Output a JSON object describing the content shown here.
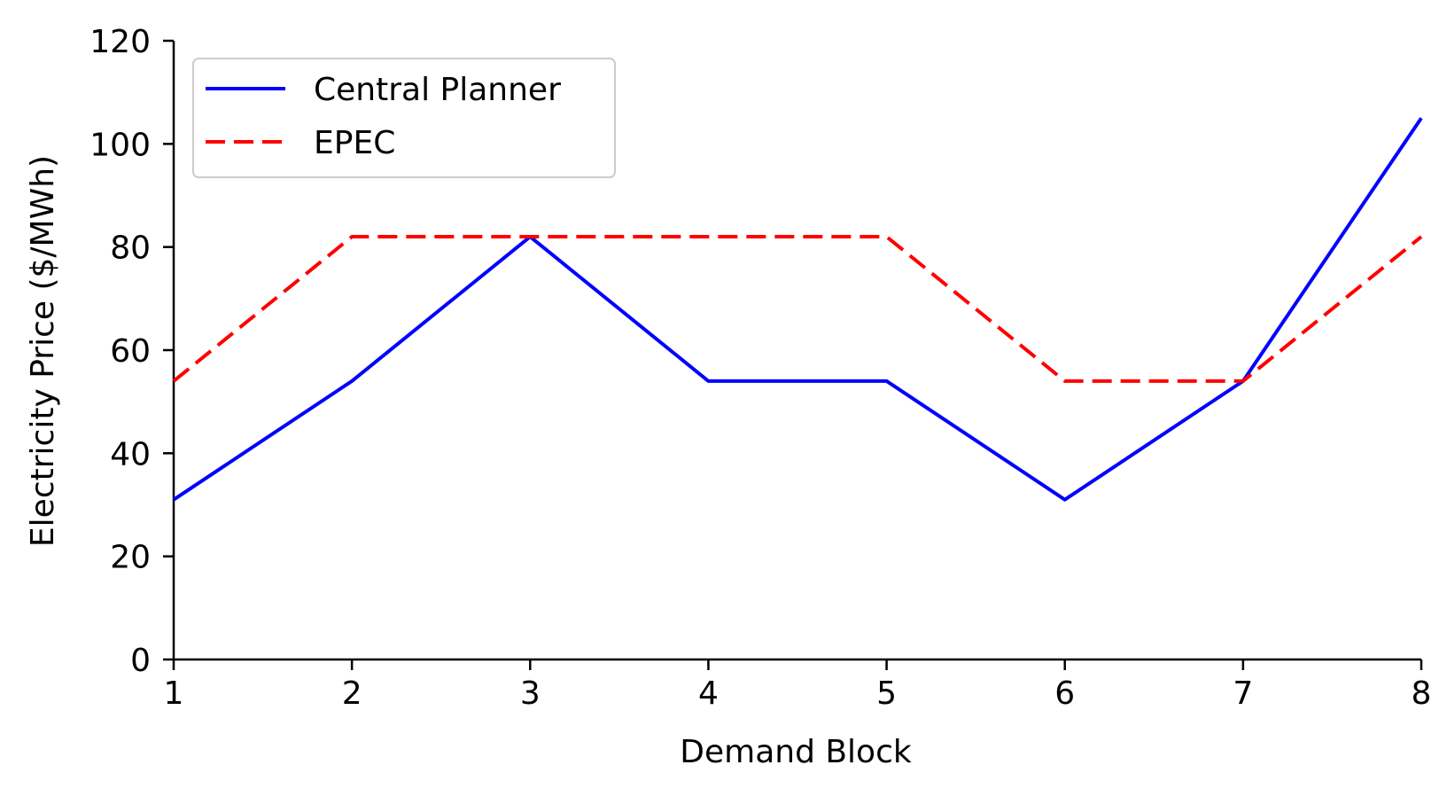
{
  "chart_data": {
    "type": "line",
    "title": "",
    "xlabel": "Demand Block",
    "ylabel": "Electricity Price ($/MWh)",
    "x": [
      1,
      2,
      3,
      4,
      5,
      6,
      7,
      8
    ],
    "xlim": [
      1,
      8
    ],
    "ylim": [
      0,
      120
    ],
    "xticks": [
      "1",
      "2",
      "3",
      "4",
      "5",
      "6",
      "7",
      "8"
    ],
    "yticks": [
      "0",
      "20",
      "40",
      "60",
      "80",
      "100",
      "120"
    ],
    "grid": false,
    "legend_position": "top-left",
    "series": [
      {
        "name": "Central Planner",
        "values": [
          31,
          54,
          82,
          54,
          54,
          31,
          54,
          105
        ],
        "color": "#0000ff",
        "style": "solid"
      },
      {
        "name": "EPEC",
        "values": [
          54,
          82,
          82,
          82,
          82,
          54,
          54,
          82
        ],
        "color": "#ff0000",
        "style": "dashed"
      }
    ]
  }
}
